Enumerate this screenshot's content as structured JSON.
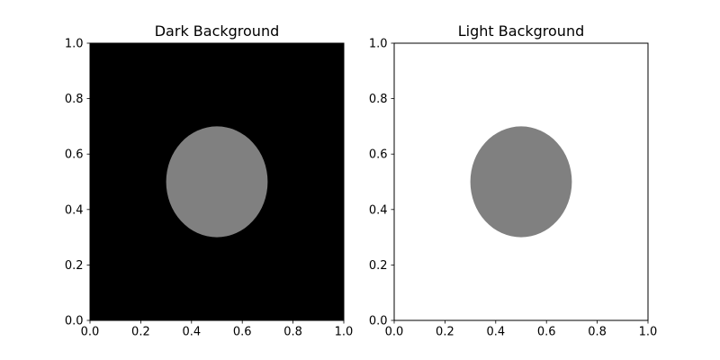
{
  "chart_data": [
    {
      "type": "scatter",
      "title": "Dark Background",
      "background_color": "#000000",
      "xlim": [
        0,
        1
      ],
      "ylim": [
        0,
        1
      ],
      "xticks": [
        "0.0",
        "0.2",
        "0.4",
        "0.6",
        "0.8",
        "1.0"
      ],
      "yticks": [
        "0.0",
        "0.2",
        "0.4",
        "0.6",
        "0.8",
        "1.0"
      ],
      "grid": false,
      "shapes": [
        {
          "kind": "circle",
          "center": [
            0.5,
            0.5
          ],
          "radius": 0.2,
          "color": "#808080"
        }
      ]
    },
    {
      "type": "scatter",
      "title": "Light Background",
      "background_color": "#ffffff",
      "xlim": [
        0,
        1
      ],
      "ylim": [
        0,
        1
      ],
      "xticks": [
        "0.0",
        "0.2",
        "0.4",
        "0.6",
        "0.8",
        "1.0"
      ],
      "yticks": [
        "0.0",
        "0.2",
        "0.4",
        "0.6",
        "0.8",
        "1.0"
      ],
      "grid": false,
      "shapes": [
        {
          "kind": "circle",
          "center": [
            0.5,
            0.5
          ],
          "radius": 0.2,
          "color": "#808080"
        }
      ]
    }
  ]
}
